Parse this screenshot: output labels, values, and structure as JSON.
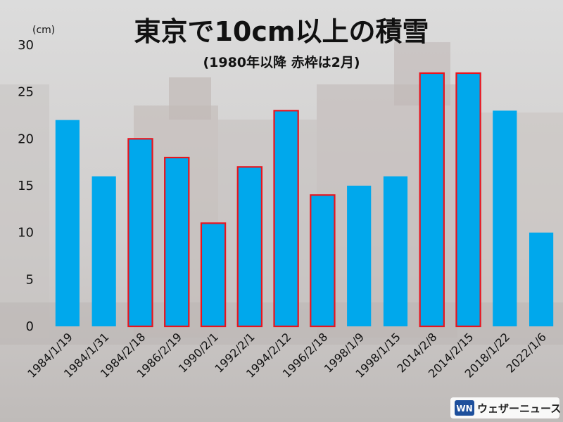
{
  "chart_data": {
    "type": "bar",
    "title": "東京で10cm以上の積雪",
    "subtitle": "(1980年以降 赤枠は2月)",
    "unit": "(cm)",
    "ylim": [
      0,
      30
    ],
    "yticks": [
      0,
      5,
      10,
      15,
      20,
      25,
      30
    ],
    "categories": [
      "1984/1/19",
      "1984/1/31",
      "1984/2/18",
      "1986/2/19",
      "1990/2/1",
      "1992/2/1",
      "1994/2/12",
      "1996/2/18",
      "1998/1/9",
      "1998/1/15",
      "2014/2/8",
      "2014/2/15",
      "2018/1/22",
      "2022/1/6"
    ],
    "values": [
      22,
      16,
      20,
      18,
      11,
      17,
      23,
      14,
      15,
      16,
      27,
      27,
      23,
      10
    ],
    "february": [
      false,
      false,
      true,
      true,
      true,
      true,
      true,
      true,
      false,
      false,
      true,
      true,
      false,
      false
    ],
    "bar_color": "#00A8EC",
    "highlight_color": "#E8141E"
  },
  "logo": {
    "text": "ウェザーニュース",
    "mark": "WN"
  }
}
